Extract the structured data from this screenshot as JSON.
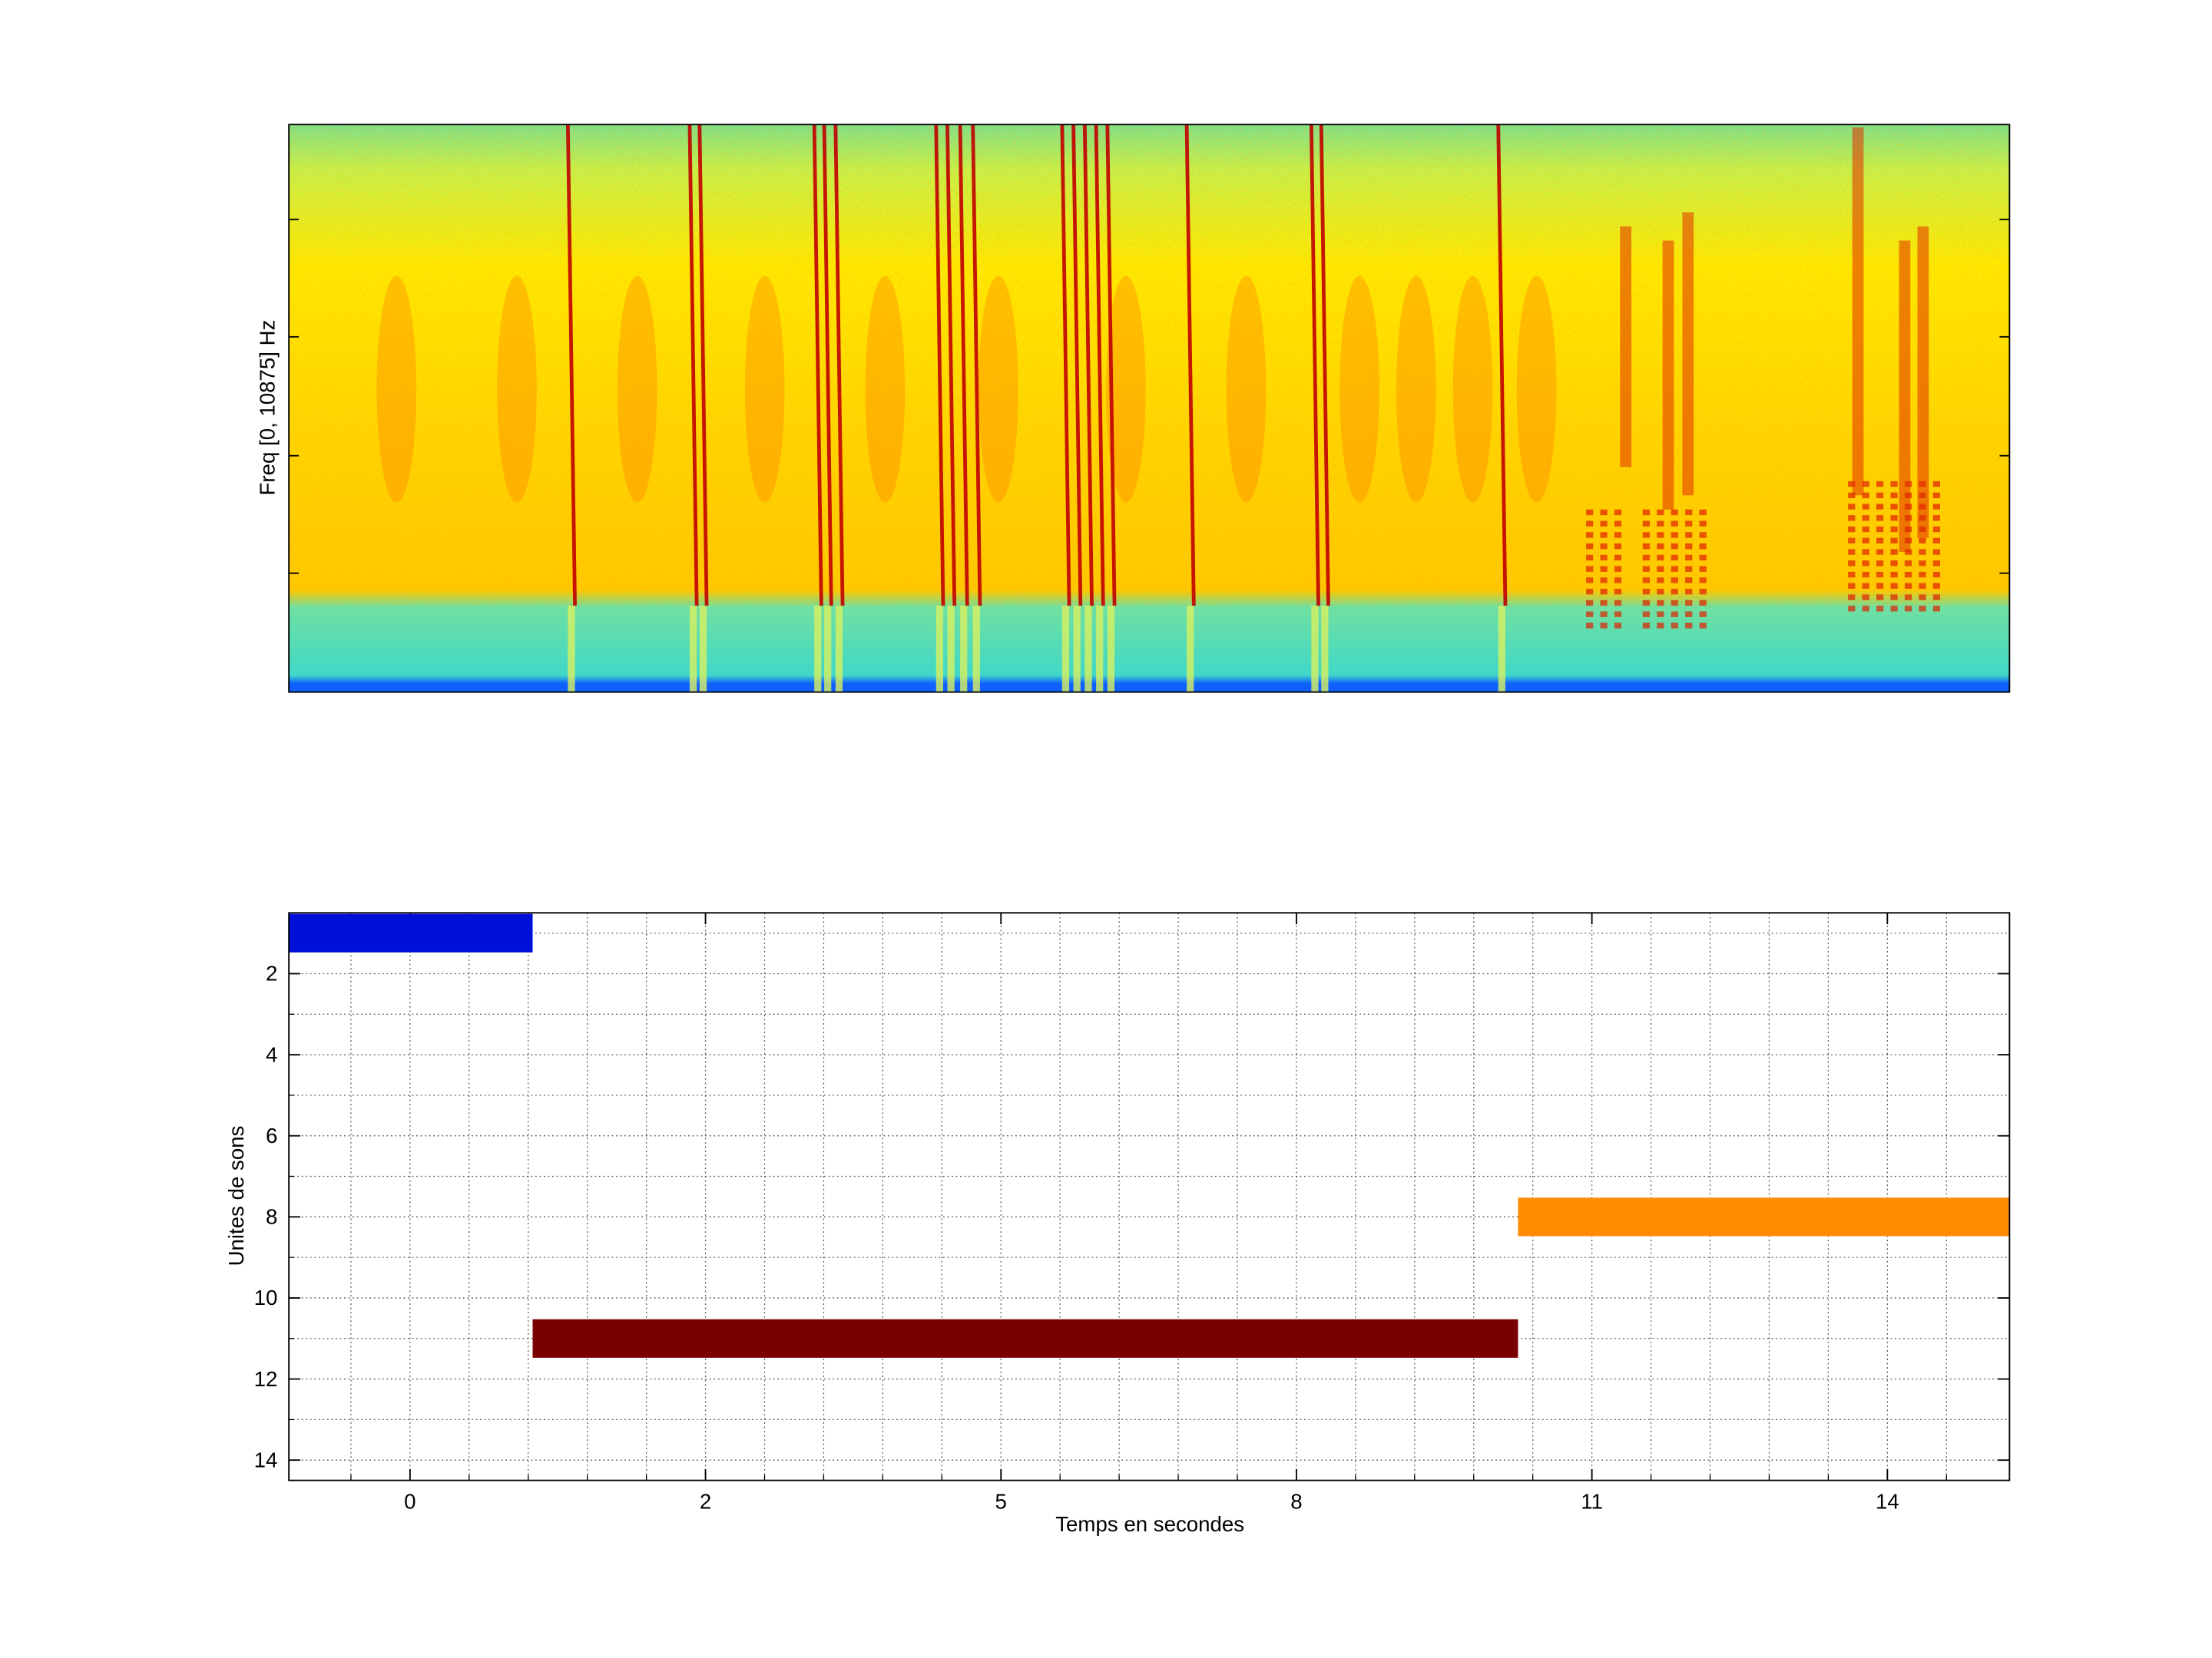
{
  "chart_data": [
    {
      "type": "spectrogram",
      "ylabel": "Freq [0, 10875] Hz"
    },
    {
      "type": "gantt",
      "xlabel": "Temps en secondes",
      "ylabel": "Unites de sons",
      "xlim": [
        -0.82,
        15.24
      ],
      "xticks": [
        0,
        2,
        5,
        8,
        11,
        14
      ],
      "xminorticks": [
        -0.4,
        0.4,
        0.8,
        1.2,
        1.6,
        2.6,
        3.2,
        3.8,
        4.4,
        5.6,
        6.2,
        6.8,
        7.4,
        8.6,
        9.2,
        9.8,
        10.4,
        11.6,
        12.2,
        12.8,
        13.4,
        14.6
      ],
      "ylim": [
        14.5,
        0.5
      ],
      "yticks": [
        2,
        4,
        6,
        8,
        10,
        12,
        14
      ],
      "yminorticks": [
        1,
        3,
        5,
        7,
        9,
        11,
        13
      ],
      "grid": true,
      "series": [
        {
          "color": "#0010d8",
          "start": -0.82,
          "end": 0.83,
          "y": 1
        },
        {
          "color": "#7a0000",
          "start": 0.83,
          "end": 10.25,
          "y": 11
        },
        {
          "color": "#ff8c00",
          "start": 10.25,
          "end": 15.24,
          "y": 8
        }
      ]
    }
  ]
}
